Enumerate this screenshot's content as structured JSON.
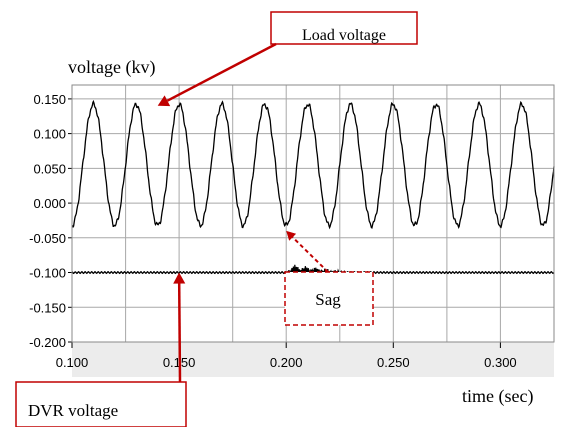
{
  "chart_data": {
    "type": "line",
    "ylabel": "voltage (kv)",
    "xlabel": "time (sec)",
    "xlim": [
      0.1,
      0.325
    ],
    "ylim": [
      -0.2,
      0.17
    ],
    "x_ticks": [
      "0.100",
      "0.150",
      "0.200",
      "0.250",
      "0.300"
    ],
    "x_tick_values": [
      0.1,
      0.15,
      0.2,
      0.25,
      0.3
    ],
    "y_ticks": [
      "0.150",
      "0.100",
      "0.050",
      "0.000",
      "-0.050",
      "-0.100",
      "-0.150",
      "-0.200"
    ],
    "y_tick_values": [
      0.15,
      0.1,
      0.05,
      0.0,
      -0.05,
      -0.1,
      -0.15,
      -0.2
    ],
    "grid": true,
    "series": [
      {
        "name": "Load voltage",
        "form": "sinusoid",
        "offset_kv": 0.055,
        "amplitude_kv": 0.087,
        "frequency_hz": 50,
        "peak_at_s": 0.11,
        "color": "#000000"
      },
      {
        "name": "DVR voltage",
        "form": "flat with disturbance",
        "level_kv": -0.1,
        "disturbance_start_s": 0.2,
        "disturbance_end_s": 0.225,
        "disturbance_peak_kv": 0.012,
        "color": "#000000"
      }
    ],
    "annotations": [
      {
        "text": "Load voltage",
        "arrow_to": [
          0.14,
          0.14
        ]
      },
      {
        "text": "DVR voltage",
        "arrow_to": [
          0.15,
          -0.1
        ]
      },
      {
        "text": "Sag",
        "arrow_to": [
          0.2,
          -0.04
        ],
        "dashed": true
      }
    ]
  },
  "colors": {
    "plot_background": "#ffffff",
    "frame_background": "#ececec",
    "grid": "#a8a8a8",
    "annotation": "#c00000",
    "line": "#000000"
  }
}
